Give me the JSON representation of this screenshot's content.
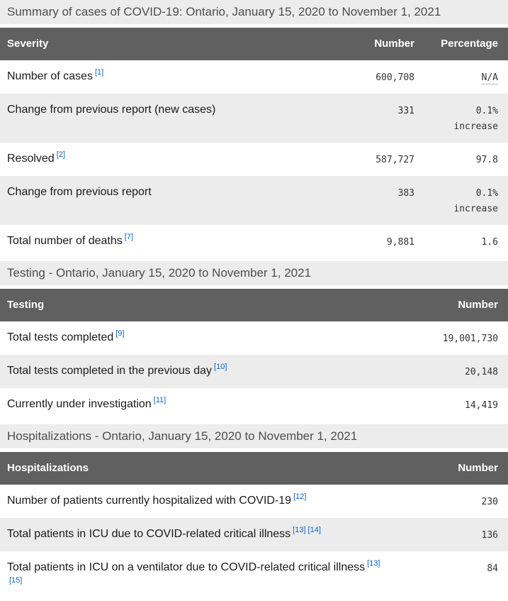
{
  "page": {
    "title": "Summary of cases of COVID-19: Ontario, January 15, 2020 to November 1, 2021"
  },
  "colors": {
    "table_header_bg": "#606060",
    "table_header_text": "#ffffff",
    "section_heading_bg": "#ececec",
    "section_heading_text": "#4d4d4d",
    "alt_row_bg": "#ececec",
    "footnote_link_blue": "#0b62c9",
    "body_text": "#1a1a1a",
    "number_text": "#333333"
  },
  "tables": [
    {
      "name": "severity",
      "columns": [
        "Severity",
        "Number",
        "Percentage"
      ],
      "rows": [
        {
          "label": "Number of cases",
          "footnotes": [
            "[1]"
          ],
          "number": "600,708",
          "percentage": "N/A"
        },
        {
          "label": "Change from previous report (new cases)",
          "footnotes": [],
          "number": "331",
          "percentage": "0.1% increase"
        },
        {
          "label": "Resolved",
          "footnotes": [
            "[2]"
          ],
          "number": "587,727",
          "percentage": "97.8"
        },
        {
          "label": "Change from previous report",
          "footnotes": [],
          "number": "383",
          "percentage": "0.1% increase"
        },
        {
          "label": "Total number of deaths",
          "footnotes": [
            "[7]"
          ],
          "number": "9,881",
          "percentage": "1.6"
        }
      ]
    },
    {
      "name": "testing",
      "heading": "Testing - Ontario, January 15, 2020 to November 1, 2021",
      "columns": [
        "Testing",
        "Number"
      ],
      "rows": [
        {
          "label": "Total tests completed",
          "footnotes": [
            "[9]"
          ],
          "number": "19,001,730"
        },
        {
          "label": "Total tests completed in the previous day",
          "footnotes": [
            "[10]"
          ],
          "number": "20,148"
        },
        {
          "label": "Currently under investigation",
          "footnotes": [
            "[11]"
          ],
          "number": "14,419"
        }
      ]
    },
    {
      "name": "hospitalizations",
      "heading": "Hospitalizations - Ontario, January 15, 2020 to November 1, 2021",
      "columns": [
        "Hospitalizations",
        "Number"
      ],
      "rows": [
        {
          "label": "Number of patients currently hospitalized with COVID-19",
          "footnotes": [
            "[12]"
          ],
          "number": "230"
        },
        {
          "label": "Total patients in ICU due to COVID-related critical illness",
          "footnotes": [
            "[13]",
            "[14]"
          ],
          "number": "136"
        },
        {
          "label": "Total patients in ICU on a ventilator due to COVID-related critical illness",
          "footnotes": [
            "[13]",
            "[15]"
          ],
          "number": "84"
        }
      ]
    }
  ]
}
